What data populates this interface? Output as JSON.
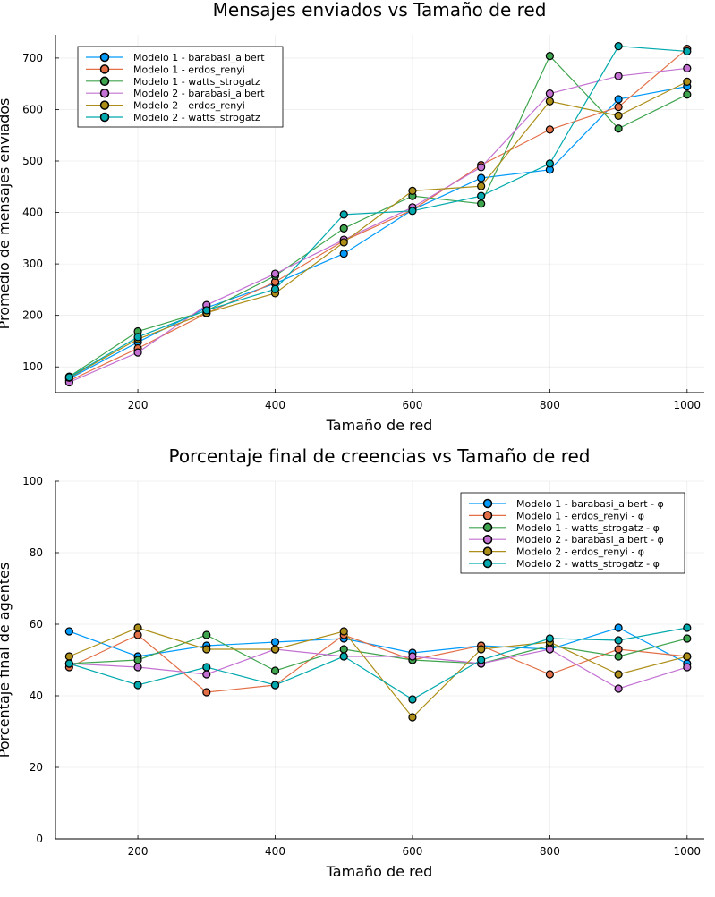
{
  "chart_data": [
    {
      "type": "line",
      "title": "Mensajes enviados vs Tamaño de red",
      "xlabel": "Tamaño de red",
      "ylabel": "Promedio de mensajes enviados",
      "xlim": [
        80,
        1025
      ],
      "ylim": [
        50,
        745
      ],
      "xticks": [
        200,
        400,
        600,
        800,
        1000
      ],
      "yticks": [
        100,
        200,
        300,
        400,
        500,
        600,
        700
      ],
      "grid": true,
      "legend_position": "top-left",
      "x": [
        100,
        200,
        300,
        400,
        500,
        600,
        700,
        800,
        900,
        1000
      ],
      "series": [
        {
          "name": "Modelo 1 - barabasi_albert",
          "color": "#009AFA",
          "values": [
            77,
            148,
            215,
            262,
            320,
            405,
            467,
            483,
            620,
            645
          ]
        },
        {
          "name": "Modelo 1 - erdos_renyi",
          "color": "#E36F47",
          "values": [
            73,
            136,
            204,
            265,
            345,
            405,
            492,
            561,
            605,
            718
          ]
        },
        {
          "name": "Modelo 1 - watts_strogatz",
          "color": "#3EA44E",
          "values": [
            81,
            169,
            209,
            277,
            369,
            432,
            417,
            704,
            563,
            629
          ]
        },
        {
          "name": "Modelo 2 - barabasi_albert",
          "color": "#C371D2",
          "values": [
            70,
            128,
            220,
            281,
            347,
            410,
            488,
            631,
            665,
            680
          ]
        },
        {
          "name": "Modelo 2 - erdos_renyi",
          "color": "#AC8E18",
          "values": [
            79,
            154,
            205,
            243,
            342,
            442,
            451,
            616,
            588,
            654
          ]
        },
        {
          "name": "Modelo 2 - watts_strogatz",
          "color": "#00A9AD",
          "values": [
            80,
            158,
            210,
            251,
            396,
            403,
            432,
            495,
            723,
            713
          ]
        }
      ]
    },
    {
      "type": "line",
      "title": "Porcentaje final de creencias vs Tamaño de red",
      "xlabel": "Tamaño de red",
      "ylabel": "Porcentaje final de agentes",
      "xlim": [
        80,
        1025
      ],
      "ylim": [
        0,
        100
      ],
      "xticks": [
        200,
        400,
        600,
        800,
        1000
      ],
      "yticks": [
        0,
        20,
        40,
        60,
        80,
        100
      ],
      "grid": true,
      "legend_position": "top-right",
      "x": [
        100,
        200,
        300,
        400,
        500,
        600,
        700,
        800,
        900,
        1000
      ],
      "series": [
        {
          "name": "Modelo 1 - barabasi_albert - φ",
          "color": "#009AFA",
          "values": [
            58,
            51,
            54,
            55,
            56,
            52,
            54,
            53,
            59,
            49
          ]
        },
        {
          "name": "Modelo 1 - erdos_renyi - φ",
          "color": "#E36F47",
          "values": [
            48,
            57,
            41,
            43,
            57,
            50,
            54,
            46,
            53,
            51
          ]
        },
        {
          "name": "Modelo 1 - watts_strogatz - φ",
          "color": "#3EA44E",
          "values": [
            49,
            50,
            57,
            47,
            53,
            50,
            49,
            54,
            51,
            56
          ]
        },
        {
          "name": "Modelo 2 - barabasi_albert - φ",
          "color": "#C371D2",
          "values": [
            49,
            48,
            46,
            53,
            51,
            51,
            49,
            53,
            42,
            48
          ]
        },
        {
          "name": "Modelo 2 - erdos_renyi - φ",
          "color": "#AC8E18",
          "values": [
            51,
            59,
            53,
            53,
            58,
            34,
            53,
            55,
            46,
            51
          ]
        },
        {
          "name": "Modelo 2 - watts_strogatz - φ",
          "color": "#00A9AD",
          "values": [
            49,
            43,
            48,
            43,
            51,
            39,
            50,
            56,
            55.5,
            59
          ]
        }
      ]
    }
  ]
}
